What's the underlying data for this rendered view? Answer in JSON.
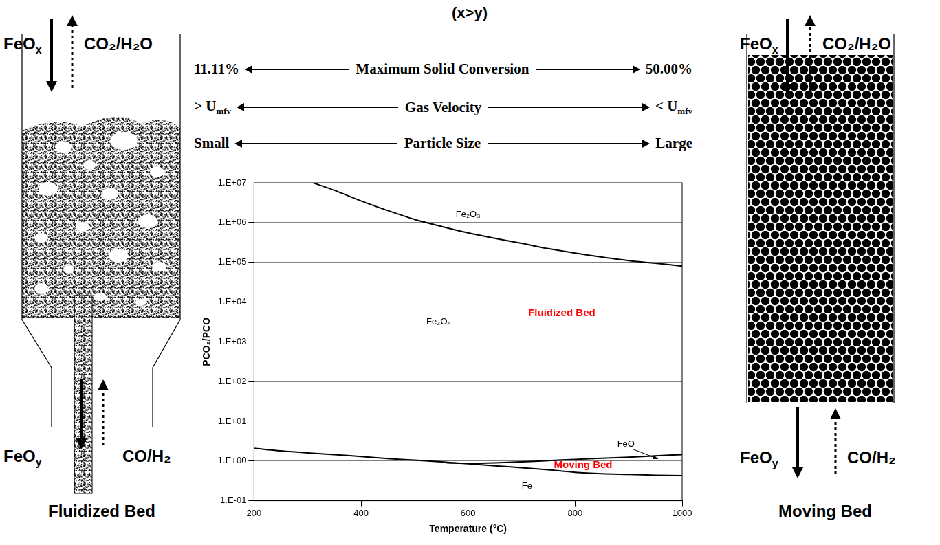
{
  "title": "(x>y)",
  "comparison": [
    {
      "left": "11.11%",
      "label": "Maximum Solid Conversion",
      "right": "50.00%"
    },
    {
      "left": {
        "text": "> U",
        "sub": "mfv"
      },
      "label": "Gas Velocity",
      "right": {
        "text": "< U",
        "sub": "mfv"
      }
    },
    {
      "left": "Small",
      "label": "Particle Size",
      "right": "Large"
    }
  ],
  "left_panel": {
    "title": "Fluidized Bed",
    "top_in": {
      "text": "FeO",
      "sub": "x"
    },
    "top_out": "CO₂/H₂O",
    "bottom_out": {
      "text": "FeO",
      "sub": "y"
    },
    "bottom_in": "CO/H₂"
  },
  "right_panel": {
    "title": "Moving Bed",
    "top_in": {
      "text": "FeO",
      "sub": "x"
    },
    "top_out": "CO₂/H₂O",
    "bottom_out": {
      "text": "FeO",
      "sub": "y"
    },
    "bottom_in": "CO/H₂"
  },
  "chart_data": {
    "type": "line",
    "x_label": "Temperature (°C)",
    "y_label": "PCO₂/PCO",
    "log": "y",
    "grid": "y",
    "xlim": [
      200,
      1000
    ],
    "xticks": [
      200,
      400,
      600,
      800,
      1000
    ],
    "ylim": [
      0.1,
      10000000
    ],
    "yticks": [
      {
        "value": 0.1,
        "label": "1.E-01"
      },
      {
        "value": 1,
        "label": "1.E+00"
      },
      {
        "value": 10,
        "label": "1.E+01"
      },
      {
        "value": 100,
        "label": "1.E+02"
      },
      {
        "value": 1000,
        "label": "1.E+03"
      },
      {
        "value": 10000,
        "label": "1.E+04"
      },
      {
        "value": 100000,
        "label": "1.E+05"
      },
      {
        "value": 1000000,
        "label": "1.E+06"
      },
      {
        "value": 10000000,
        "label": "1.E+07"
      }
    ],
    "series": [
      {
        "color": "#000000",
        "x": [
          310,
          350,
          400,
          450,
          500,
          550,
          600,
          650,
          700,
          750,
          800,
          850,
          900,
          950,
          1000
        ],
        "values": [
          10000000,
          6500000,
          3500000,
          2000000,
          1200000,
          800000,
          550000,
          400000,
          300000,
          220000,
          170000,
          135000,
          110000,
          95000,
          80000
        ]
      },
      {
        "color": "#000000",
        "x": [
          200,
          250,
          300,
          350,
          400,
          450,
          500,
          550,
          600,
          650,
          700,
          750,
          800,
          850,
          900,
          950,
          1000
        ],
        "values": [
          2.1,
          1.8,
          1.6,
          1.45,
          1.3,
          1.15,
          1.05,
          0.95,
          0.85,
          0.76,
          0.68,
          0.6,
          0.52,
          0.48,
          0.46,
          0.44,
          0.43
        ]
      },
      {
        "color": "#000000",
        "x": [
          560,
          600,
          650,
          700,
          750,
          800,
          850,
          900,
          950,
          1000
        ],
        "values": [
          0.9,
          0.88,
          0.9,
          0.95,
          1.02,
          1.1,
          1.17,
          1.25,
          1.35,
          1.45
        ]
      }
    ],
    "annotations": [
      {
        "text": "Fe₂O₃",
        "x": 600,
        "y": 1600000
      },
      {
        "text": "Fe₃O₄",
        "x": 545,
        "y": 3100
      },
      {
        "text": "Fluidized Bed",
        "x": 775,
        "y": 5200,
        "color": "#ff0000"
      },
      {
        "text": "FeO",
        "x": 895,
        "y": 2.6,
        "arrow": true
      },
      {
        "text": "Moving Bed",
        "x": 815,
        "y": 0.8,
        "color": "#ff0000"
      },
      {
        "text": "Fe",
        "x": 710,
        "y": 0.23
      }
    ]
  }
}
